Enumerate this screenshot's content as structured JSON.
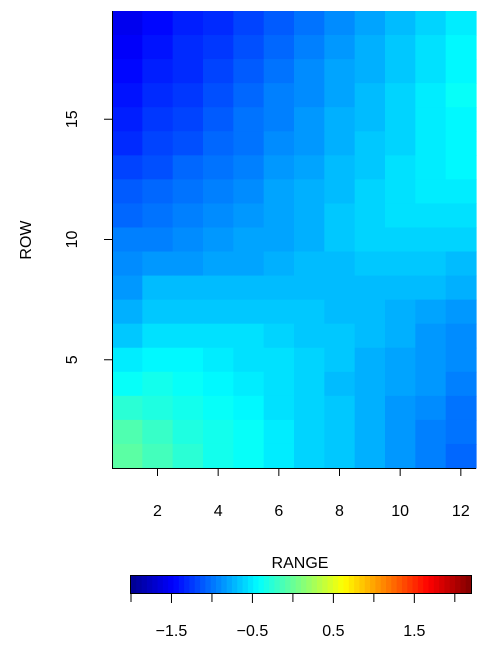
{
  "chart_data": {
    "type": "heatmap",
    "xlabel": "",
    "ylabel": "ROW",
    "x_ticks": [
      2,
      4,
      6,
      8,
      10,
      12
    ],
    "y_ticks": [
      5,
      10,
      15
    ],
    "x_range": [
      0.5,
      12.5
    ],
    "y_range": [
      0.5,
      19.5
    ],
    "n_cols": 12,
    "n_rows": 19,
    "colorscale": "jet",
    "zlim": [
      -2.0,
      2.2
    ],
    "rows_top_to_bottom": [
      [
        -1.55,
        -1.45,
        -1.35,
        -1.3,
        -1.2,
        -1.1,
        -1.0,
        -0.9,
        -0.8,
        -0.7,
        -0.6,
        -0.5
      ],
      [
        -1.5,
        -1.4,
        -1.3,
        -1.25,
        -1.15,
        -1.05,
        -0.95,
        -0.85,
        -0.75,
        -0.65,
        -0.55,
        -0.45
      ],
      [
        -1.45,
        -1.35,
        -1.3,
        -1.2,
        -1.1,
        -1.0,
        -0.9,
        -0.8,
        -0.75,
        -0.65,
        -0.55,
        -0.45
      ],
      [
        -1.4,
        -1.3,
        -1.25,
        -1.15,
        -1.05,
        -0.95,
        -0.9,
        -0.8,
        -0.7,
        -0.6,
        -0.5,
        -0.4
      ],
      [
        -1.35,
        -1.25,
        -1.2,
        -1.1,
        -1.0,
        -0.95,
        -0.85,
        -0.75,
        -0.7,
        -0.6,
        -0.5,
        -0.45
      ],
      [
        -1.3,
        -1.2,
        -1.15,
        -1.05,
        -1.0,
        -0.9,
        -0.85,
        -0.75,
        -0.65,
        -0.6,
        -0.5,
        -0.45
      ],
      [
        -1.2,
        -1.15,
        -1.05,
        -1.0,
        -0.95,
        -0.85,
        -0.8,
        -0.7,
        -0.65,
        -0.55,
        -0.5,
        -0.45
      ],
      [
        -1.1,
        -1.05,
        -1.0,
        -0.95,
        -0.9,
        -0.8,
        -0.75,
        -0.7,
        -0.6,
        -0.55,
        -0.5,
        -0.5
      ],
      [
        -1.05,
        -1.0,
        -0.95,
        -0.9,
        -0.85,
        -0.8,
        -0.75,
        -0.65,
        -0.6,
        -0.55,
        -0.55,
        -0.55
      ],
      [
        -0.95,
        -0.95,
        -0.9,
        -0.85,
        -0.8,
        -0.8,
        -0.75,
        -0.65,
        -0.6,
        -0.6,
        -0.6,
        -0.6
      ],
      [
        -0.9,
        -0.85,
        -0.85,
        -0.8,
        -0.8,
        -0.75,
        -0.7,
        -0.7,
        -0.65,
        -0.65,
        -0.65,
        -0.7
      ],
      [
        -0.85,
        -0.7,
        -0.7,
        -0.7,
        -0.7,
        -0.7,
        -0.7,
        -0.7,
        -0.7,
        -0.7,
        -0.7,
        -0.75
      ],
      [
        -0.75,
        -0.65,
        -0.65,
        -0.65,
        -0.65,
        -0.65,
        -0.65,
        -0.7,
        -0.7,
        -0.75,
        -0.8,
        -0.85
      ],
      [
        -0.65,
        -0.55,
        -0.55,
        -0.55,
        -0.55,
        -0.6,
        -0.65,
        -0.65,
        -0.7,
        -0.75,
        -0.85,
        -0.9
      ],
      [
        -0.5,
        -0.45,
        -0.45,
        -0.5,
        -0.55,
        -0.55,
        -0.6,
        -0.65,
        -0.75,
        -0.8,
        -0.85,
        -0.9
      ],
      [
        -0.4,
        -0.35,
        -0.4,
        -0.45,
        -0.5,
        -0.55,
        -0.6,
        -0.7,
        -0.75,
        -0.8,
        -0.85,
        -0.95
      ],
      [
        -0.25,
        -0.3,
        -0.35,
        -0.4,
        -0.45,
        -0.55,
        -0.6,
        -0.65,
        -0.75,
        -0.85,
        -0.9,
        -1.0
      ],
      [
        -0.1,
        -0.2,
        -0.3,
        -0.35,
        -0.4,
        -0.5,
        -0.6,
        -0.65,
        -0.75,
        -0.85,
        -0.95,
        -1.0
      ],
      [
        -0.05,
        -0.15,
        -0.25,
        -0.35,
        -0.4,
        -0.5,
        -0.6,
        -0.65,
        -0.75,
        -0.85,
        -0.95,
        -1.05
      ]
    ],
    "colorbar": {
      "title": "RANGE",
      "ticks": [
        -1.5,
        -0.5,
        0.5,
        1.5
      ],
      "tick_labels": [
        "−1.5",
        "−0.5",
        "0.5",
        "1.5"
      ],
      "range": [
        -2.0,
        2.2
      ],
      "n_colors": 64
    }
  }
}
